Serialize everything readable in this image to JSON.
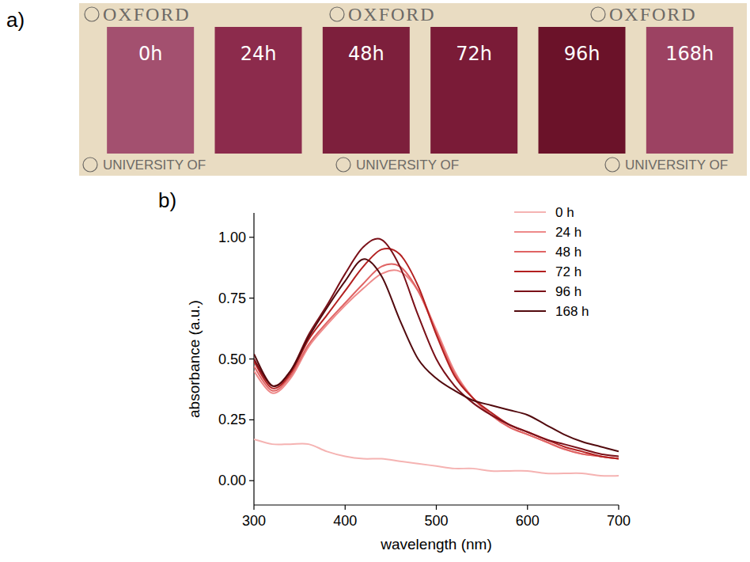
{
  "photo": {
    "letter": "a)",
    "watermarks": [
      "OXFORD",
      "UNIVERSITY OF"
    ],
    "samples": [
      {
        "label": "0h",
        "color": "#a3506f"
      },
      {
        "label": "24h",
        "color": "#8c2b4c"
      },
      {
        "label": "48h",
        "color": "#7d1f3c"
      },
      {
        "label": "72h",
        "color": "#7a1b37"
      },
      {
        "label": "96h",
        "color": "#6b1229"
      },
      {
        "label": "168h",
        "color": "#9c4262"
      }
    ]
  },
  "chart_data": {
    "type": "line",
    "letter": "b)",
    "x_label": "wavelength (nm)",
    "y_label": "absorbance (a.u.)",
    "x": [
      300,
      320,
      340,
      360,
      380,
      400,
      420,
      440,
      460,
      480,
      500,
      520,
      540,
      560,
      580,
      600,
      620,
      640,
      660,
      680,
      700
    ],
    "xlim": [
      300,
      700
    ],
    "xticks": [
      300,
      400,
      500,
      600,
      700
    ],
    "ylim": [
      -0.1,
      1.1
    ],
    "yticks": [
      {
        "value": 0,
        "label": "0.00"
      },
      {
        "value": 0.25,
        "label": "0.25"
      },
      {
        "value": 0.5,
        "label": "0.50"
      },
      {
        "value": 0.75,
        "label": "0.75"
      },
      {
        "value": 1,
        "label": "1.00"
      }
    ],
    "legend": "top-right",
    "series": [
      {
        "name": "0 h",
        "color": "#f5b3b2",
        "values": [
          0.17,
          0.15,
          0.15,
          0.15,
          0.12,
          0.1,
          0.09,
          0.09,
          0.08,
          0.07,
          0.06,
          0.05,
          0.05,
          0.04,
          0.04,
          0.04,
          0.03,
          0.03,
          0.03,
          0.02,
          0.02
        ]
      },
      {
        "name": "24 h",
        "color": "#ee8a8a",
        "values": [
          0.45,
          0.36,
          0.42,
          0.55,
          0.64,
          0.72,
          0.79,
          0.85,
          0.86,
          0.78,
          0.62,
          0.45,
          0.34,
          0.27,
          0.22,
          0.19,
          0.16,
          0.13,
          0.11,
          0.1,
          0.09
        ]
      },
      {
        "name": "48 h",
        "color": "#e06464",
        "values": [
          0.47,
          0.37,
          0.43,
          0.56,
          0.65,
          0.73,
          0.81,
          0.88,
          0.88,
          0.78,
          0.61,
          0.44,
          0.34,
          0.27,
          0.22,
          0.19,
          0.16,
          0.13,
          0.11,
          0.1,
          0.09
        ]
      },
      {
        "name": "72 h",
        "color": "#b32020",
        "values": [
          0.49,
          0.38,
          0.44,
          0.58,
          0.68,
          0.78,
          0.88,
          0.95,
          0.93,
          0.8,
          0.6,
          0.43,
          0.34,
          0.28,
          0.23,
          0.2,
          0.17,
          0.14,
          0.12,
          0.1,
          0.09
        ]
      },
      {
        "name": "96 h",
        "color": "#7a1018",
        "values": [
          0.5,
          0.39,
          0.45,
          0.6,
          0.72,
          0.85,
          0.96,
          0.99,
          0.88,
          0.68,
          0.5,
          0.39,
          0.32,
          0.27,
          0.23,
          0.2,
          0.17,
          0.15,
          0.13,
          0.11,
          0.1
        ]
      },
      {
        "name": "168 h",
        "color": "#520a0e",
        "values": [
          0.52,
          0.39,
          0.45,
          0.59,
          0.71,
          0.82,
          0.91,
          0.84,
          0.66,
          0.5,
          0.42,
          0.37,
          0.33,
          0.31,
          0.29,
          0.27,
          0.23,
          0.19,
          0.16,
          0.14,
          0.12
        ]
      }
    ]
  }
}
